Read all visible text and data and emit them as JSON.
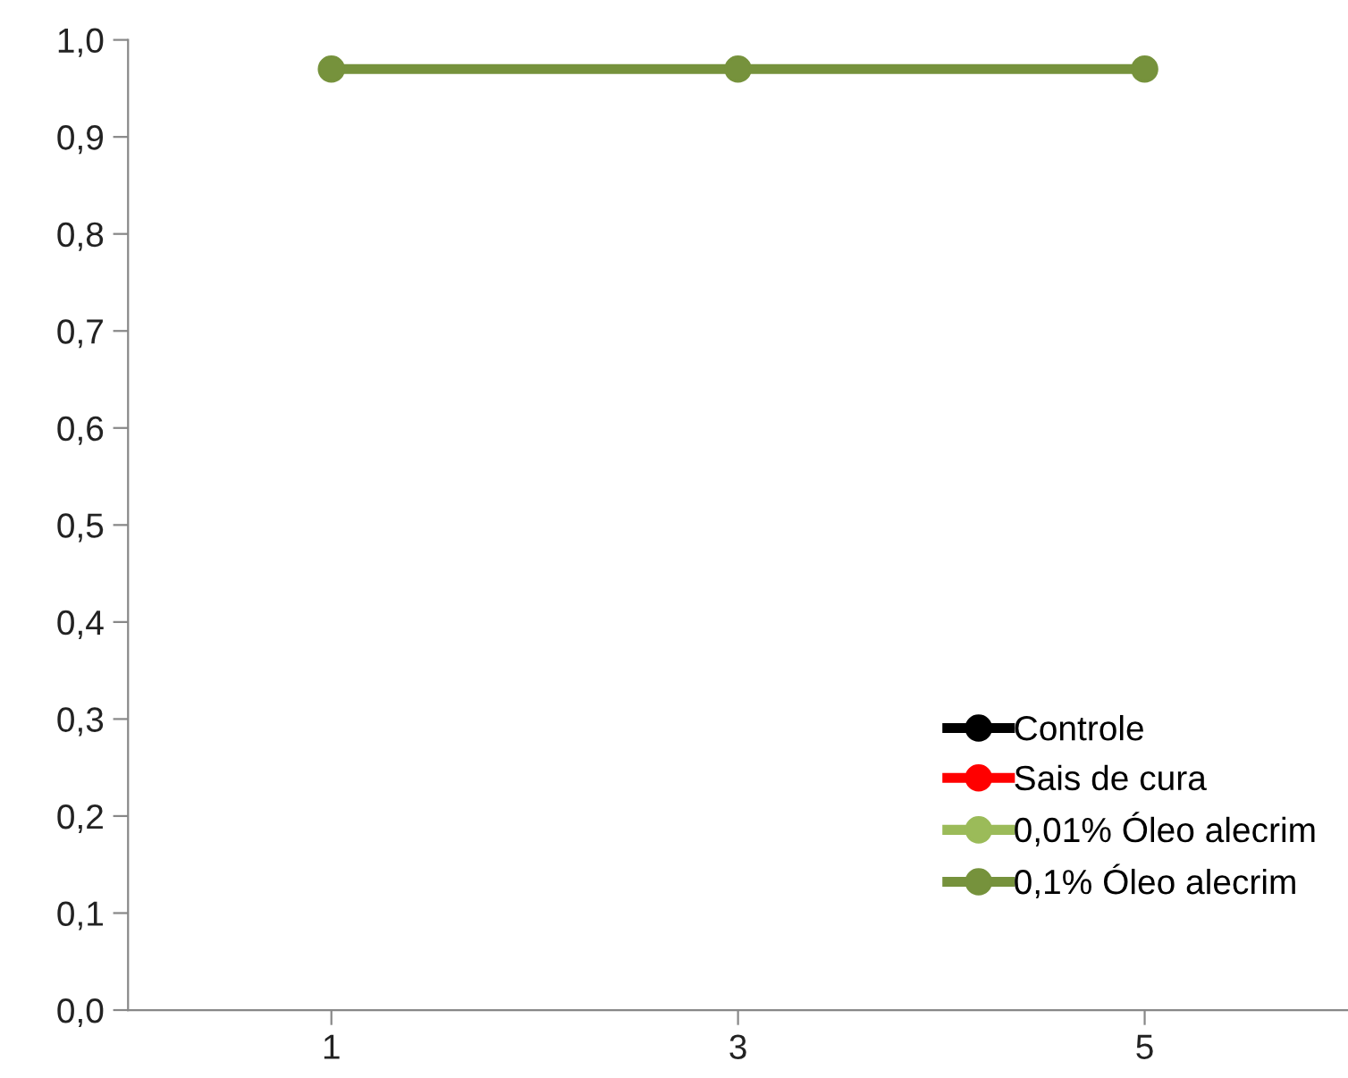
{
  "chart_data": {
    "type": "line",
    "x": [
      1,
      3,
      5
    ],
    "xlim": [
      0,
      6
    ],
    "xticks": [
      1,
      3,
      5
    ],
    "series": [
      {
        "name": "Controle",
        "color": "#000000",
        "values": [
          null,
          null,
          null
        ]
      },
      {
        "name": "Sais de cura",
        "color": "#ff0000",
        "values": [
          null,
          null,
          null
        ]
      },
      {
        "name": "0,01% Óleo alecrim",
        "color": "#9bbb59",
        "values": [
          null,
          null,
          null
        ]
      },
      {
        "name": "0,1% Óleo alecrim",
        "color": "#76923c",
        "values": [
          0.97,
          0.97,
          0.97
        ]
      }
    ],
    "ylim": [
      0,
      1
    ],
    "yticks": [
      {
        "value": 0,
        "label": "0,0"
      },
      {
        "value": 0.1,
        "label": "0,1"
      },
      {
        "value": 0.2,
        "label": "0,2"
      },
      {
        "value": 0.3,
        "label": "0,3"
      },
      {
        "value": 0.4,
        "label": "0,4"
      },
      {
        "value": 0.5,
        "label": "0,5"
      },
      {
        "value": 0.6,
        "label": "0,6"
      },
      {
        "value": 0.7,
        "label": "0,7"
      },
      {
        "value": 0.8,
        "label": "0,8"
      },
      {
        "value": 0.9,
        "label": "0,9"
      },
      {
        "value": 1,
        "label": "1,0"
      }
    ],
    "grid": false,
    "legend": "bottom right",
    "marker": "circle",
    "line_style": "solid"
  }
}
